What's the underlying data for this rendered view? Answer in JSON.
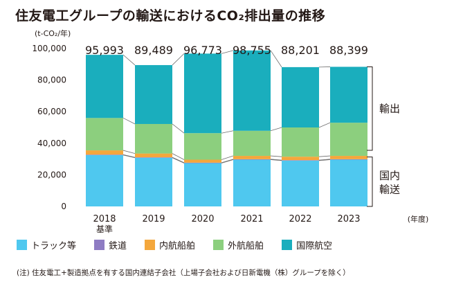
{
  "chart_data": {
    "type": "bar",
    "stacked": true,
    "title": "住友電工グループの輸送におけるCO₂排出量の推移",
    "ylabel": "(t-CO₂/年)",
    "xlabel": "(年度)",
    "ylim": [
      0,
      100000
    ],
    "yticks": [
      "0",
      "20,000",
      "40,000",
      "60,000",
      "80,000",
      "100,000"
    ],
    "grid": false,
    "categories": [
      {
        "year": "2018",
        "sub": "基準"
      },
      {
        "year": "2019",
        "sub": ""
      },
      {
        "year": "2020",
        "sub": ""
      },
      {
        "year": "2021",
        "sub": ""
      },
      {
        "year": "2022",
        "sub": ""
      },
      {
        "year": "2023",
        "sub": ""
      }
    ],
    "totals": [
      95993,
      89489,
      96773,
      98755,
      88201,
      88399
    ],
    "total_labels": [
      "95,993",
      "89,489",
      "96,773",
      "98,755",
      "88,201",
      "88,399"
    ],
    "series": [
      {
        "name": "トラック等",
        "color": "#4fc8ef",
        "values": [
          32500,
          30800,
          27400,
          29600,
          29000,
          29600
        ]
      },
      {
        "name": "鉄道",
        "color": "#8e7cc3",
        "values": [
          300,
          300,
          300,
          300,
          300,
          300
        ]
      },
      {
        "name": "内航船舶",
        "color": "#f4a73c",
        "values": [
          2700,
          2400,
          1900,
          2100,
          2200,
          2100
        ]
      },
      {
        "name": "外航船舶",
        "color": "#8ccf7e",
        "values": [
          20500,
          18700,
          16800,
          15900,
          18500,
          21000
        ]
      },
      {
        "name": "国際航空",
        "color": "#1aaebd",
        "values": [
          39993,
          37289,
          50373,
          50855,
          38201,
          35399
        ]
      }
    ],
    "brackets": [
      {
        "label": "輸出",
        "from": 35500,
        "to": 88400
      },
      {
        "label": "国内輸送",
        "from": 0,
        "to": 31300
      }
    ]
  },
  "note": "(注) 住友電工+製造拠点を有する国内連結子会社（上場子会社および日新電機（株）グループを除く）"
}
